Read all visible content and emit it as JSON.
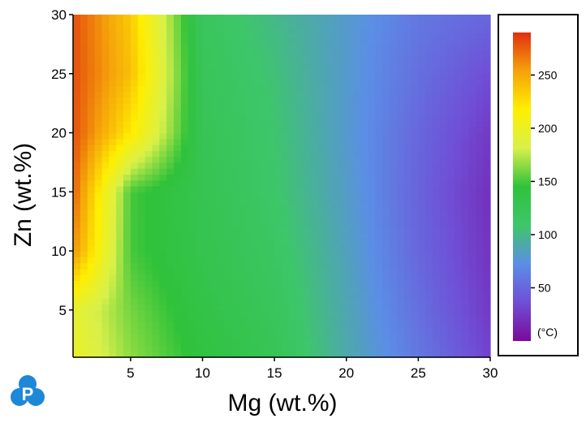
{
  "chart_data": {
    "type": "heatmap",
    "title": "",
    "xlabel": "Mg (wt.%)",
    "ylabel": "Zn (wt.%)",
    "xlim": [
      1,
      30
    ],
    "ylim": [
      1,
      30
    ],
    "x_ticks": [
      5,
      10,
      15,
      20,
      25,
      30
    ],
    "y_ticks": [
      5,
      10,
      15,
      20,
      25,
      30
    ],
    "value_range": [
      0,
      290
    ],
    "colorbar_ticks": [
      50,
      100,
      150,
      200,
      250
    ],
    "colorbar_unit": "(°C)",
    "colormap": [
      "#7a0a9a",
      "#6f4fd6",
      "#5b8ee6",
      "#3ec66a",
      "#2fc23a",
      "#d8f04a",
      "#ffef00",
      "#f5a20a",
      "#e03010"
    ],
    "grid_x": [
      1,
      5,
      10,
      15,
      20,
      25,
      30
    ],
    "grid_y": [
      1,
      5,
      10,
      15,
      20,
      25,
      30
    ],
    "values": [
      [
        200,
        165,
        140,
        125,
        90,
        60,
        30
      ],
      [
        195,
        160,
        135,
        120,
        88,
        55,
        25
      ],
      [
        260,
        150,
        130,
        115,
        85,
        50,
        22
      ],
      [
        275,
        150,
        128,
        110,
        82,
        48,
        20
      ],
      [
        280,
        220,
        125,
        108,
        80,
        50,
        25
      ],
      [
        280,
        240,
        122,
        105,
        80,
        55,
        35
      ],
      [
        280,
        235,
        118,
        100,
        80,
        60,
        50
      ]
    ]
  },
  "logo": {
    "letter": "P"
  }
}
